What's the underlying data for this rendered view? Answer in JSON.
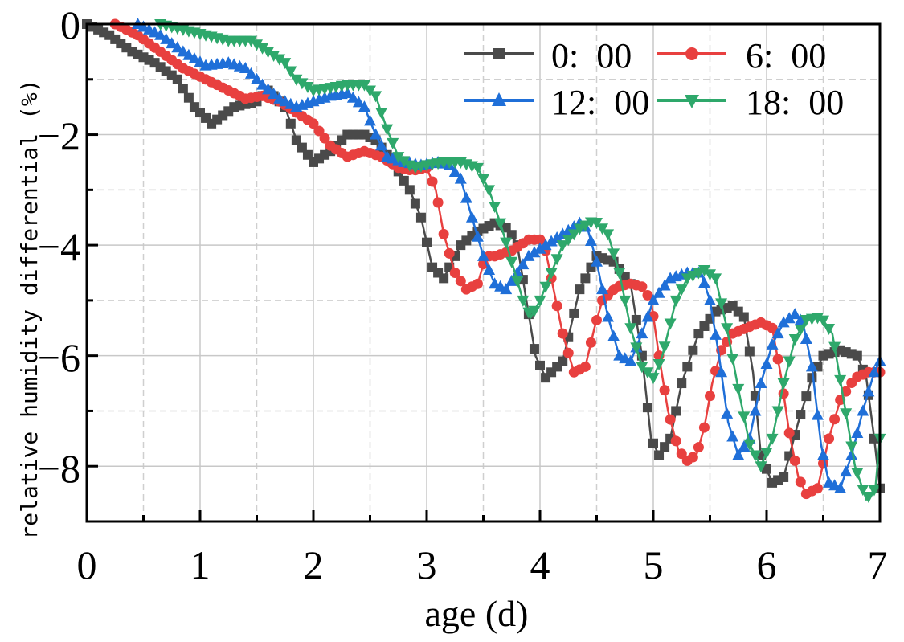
{
  "chart_data": {
    "type": "line",
    "title": "",
    "xlabel": "age (d)",
    "ylabel": "relative humidity differential (%)",
    "xlim": [
      0,
      7
    ],
    "ylim": [
      -9,
      0
    ],
    "x_ticks": [
      0,
      1,
      2,
      3,
      4,
      5,
      6,
      7
    ],
    "y_ticks": [
      0,
      -2,
      -4,
      -6,
      -8
    ],
    "x_tick_labels": [
      "0",
      "1",
      "2",
      "3",
      "4",
      "5",
      "6",
      "7"
    ],
    "y_tick_labels": [
      "0",
      "−2",
      "−4",
      "−6",
      "−8"
    ],
    "grid": true,
    "legend_position": "top-right",
    "series": [
      {
        "name": "0: 00",
        "label": "0:  00",
        "color": "#4a4a4a",
        "marker": "square",
        "points": [
          [
            0,
            0
          ],
          [
            0.2,
            -0.2
          ],
          [
            0.4,
            -0.5
          ],
          [
            0.6,
            -0.7
          ],
          [
            0.8,
            -1.0
          ],
          [
            0.95,
            -1.5
          ],
          [
            1.1,
            -1.8
          ],
          [
            1.3,
            -1.5
          ],
          [
            1.5,
            -1.4
          ],
          [
            1.6,
            -1.2
          ],
          [
            1.75,
            -1.5
          ],
          [
            1.85,
            -2.1
          ],
          [
            2.0,
            -2.5
          ],
          [
            2.15,
            -2.3
          ],
          [
            2.3,
            -2.0
          ],
          [
            2.45,
            -2.0
          ],
          [
            2.55,
            -2.1
          ],
          [
            2.7,
            -2.5
          ],
          [
            2.85,
            -3.0
          ],
          [
            2.95,
            -3.5
          ],
          [
            3.05,
            -4.4
          ],
          [
            3.15,
            -4.6
          ],
          [
            3.3,
            -4.0
          ],
          [
            3.45,
            -3.75
          ],
          [
            3.6,
            -3.6
          ],
          [
            3.72,
            -3.7
          ],
          [
            3.8,
            -4.0
          ],
          [
            3.88,
            -5.0
          ],
          [
            3.96,
            -6.0
          ],
          [
            4.05,
            -6.4
          ],
          [
            4.2,
            -6.1
          ],
          [
            4.35,
            -4.8
          ],
          [
            4.5,
            -4.2
          ],
          [
            4.65,
            -4.3
          ],
          [
            4.8,
            -4.7
          ],
          [
            4.9,
            -6.0
          ],
          [
            4.98,
            -7.5
          ],
          [
            5.05,
            -7.8
          ],
          [
            5.15,
            -7.5
          ],
          [
            5.25,
            -6.5
          ],
          [
            5.4,
            -5.6
          ],
          [
            5.55,
            -5.2
          ],
          [
            5.7,
            -5.1
          ],
          [
            5.8,
            -5.3
          ],
          [
            5.88,
            -6.3
          ],
          [
            5.95,
            -7.8
          ],
          [
            6.05,
            -8.3
          ],
          [
            6.15,
            -8.2
          ],
          [
            6.28,
            -7.2
          ],
          [
            6.4,
            -6.4
          ],
          [
            6.5,
            -6.0
          ],
          [
            6.65,
            -5.9
          ],
          [
            6.8,
            -6.0
          ],
          [
            6.88,
            -6.4
          ],
          [
            6.95,
            -7.5
          ],
          [
            7.0,
            -8.4
          ]
        ]
      },
      {
        "name": "6: 00",
        "label": "6:  00",
        "color": "#e8403f",
        "marker": "circle",
        "points": [
          [
            0.25,
            0
          ],
          [
            0.45,
            -0.2
          ],
          [
            0.65,
            -0.5
          ],
          [
            0.85,
            -0.8
          ],
          [
            1.05,
            -1.0
          ],
          [
            1.25,
            -1.2
          ],
          [
            1.4,
            -1.35
          ],
          [
            1.55,
            -1.3
          ],
          [
            1.7,
            -1.4
          ],
          [
            1.85,
            -1.6
          ],
          [
            2.0,
            -1.8
          ],
          [
            2.15,
            -2.2
          ],
          [
            2.3,
            -2.4
          ],
          [
            2.45,
            -2.3
          ],
          [
            2.6,
            -2.4
          ],
          [
            2.75,
            -2.6
          ],
          [
            2.88,
            -2.65
          ],
          [
            3.0,
            -2.6
          ],
          [
            3.08,
            -3.0
          ],
          [
            3.15,
            -3.8
          ],
          [
            3.25,
            -4.5
          ],
          [
            3.35,
            -4.8
          ],
          [
            3.45,
            -4.7
          ],
          [
            3.52,
            -4.2
          ],
          [
            3.6,
            -4.2
          ],
          [
            3.75,
            -4.1
          ],
          [
            3.9,
            -3.9
          ],
          [
            4.0,
            -3.9
          ],
          [
            4.05,
            -4.1
          ],
          [
            4.12,
            -4.8
          ],
          [
            4.2,
            -5.6
          ],
          [
            4.3,
            -6.3
          ],
          [
            4.4,
            -6.2
          ],
          [
            4.48,
            -5.5
          ],
          [
            4.55,
            -5.0
          ],
          [
            4.68,
            -4.75
          ],
          [
            4.8,
            -4.7
          ],
          [
            4.9,
            -4.75
          ],
          [
            4.98,
            -5.0
          ],
          [
            5.05,
            -6.0
          ],
          [
            5.13,
            -7.0
          ],
          [
            5.22,
            -7.7
          ],
          [
            5.3,
            -7.9
          ],
          [
            5.38,
            -7.8
          ],
          [
            5.45,
            -7.3
          ],
          [
            5.52,
            -6.5
          ],
          [
            5.6,
            -5.9
          ],
          [
            5.7,
            -5.6
          ],
          [
            5.82,
            -5.5
          ],
          [
            5.95,
            -5.4
          ],
          [
            6.05,
            -5.5
          ],
          [
            6.13,
            -6.4
          ],
          [
            6.2,
            -7.4
          ],
          [
            6.28,
            -8.2
          ],
          [
            6.35,
            -8.5
          ],
          [
            6.45,
            -8.4
          ],
          [
            6.55,
            -7.5
          ],
          [
            6.65,
            -6.8
          ],
          [
            6.78,
            -6.4
          ],
          [
            6.9,
            -6.3
          ],
          [
            7.0,
            -6.3
          ]
        ]
      },
      {
        "name": "12: 00",
        "label": "12:  00",
        "color": "#1f6fd8",
        "marker": "triangle-up",
        "points": [
          [
            0.45,
            0
          ],
          [
            0.65,
            -0.2
          ],
          [
            0.85,
            -0.5
          ],
          [
            1.05,
            -0.75
          ],
          [
            1.25,
            -0.7
          ],
          [
            1.4,
            -0.8
          ],
          [
            1.55,
            -1.1
          ],
          [
            1.7,
            -1.35
          ],
          [
            1.85,
            -1.5
          ],
          [
            2.0,
            -1.4
          ],
          [
            2.15,
            -1.3
          ],
          [
            2.3,
            -1.25
          ],
          [
            2.45,
            -1.5
          ],
          [
            2.55,
            -2.0
          ],
          [
            2.65,
            -2.4
          ],
          [
            2.8,
            -2.5
          ],
          [
            2.95,
            -2.55
          ],
          [
            3.1,
            -2.5
          ],
          [
            3.2,
            -2.55
          ],
          [
            3.3,
            -2.8
          ],
          [
            3.4,
            -3.5
          ],
          [
            3.5,
            -4.2
          ],
          [
            3.6,
            -4.7
          ],
          [
            3.7,
            -4.8
          ],
          [
            3.8,
            -4.5
          ],
          [
            3.9,
            -4.2
          ],
          [
            4.05,
            -4.0
          ],
          [
            4.2,
            -3.8
          ],
          [
            4.35,
            -3.6
          ],
          [
            4.42,
            -3.7
          ],
          [
            4.5,
            -4.3
          ],
          [
            4.6,
            -5.3
          ],
          [
            4.7,
            -6.0
          ],
          [
            4.8,
            -6.1
          ],
          [
            4.9,
            -5.6
          ],
          [
            5.0,
            -5.0
          ],
          [
            5.15,
            -4.6
          ],
          [
            5.3,
            -4.5
          ],
          [
            5.42,
            -4.5
          ],
          [
            5.5,
            -5.0
          ],
          [
            5.58,
            -6.0
          ],
          [
            5.66,
            -7.2
          ],
          [
            5.75,
            -7.8
          ],
          [
            5.85,
            -7.5
          ],
          [
            5.95,
            -6.5
          ],
          [
            6.05,
            -5.8
          ],
          [
            6.15,
            -5.4
          ],
          [
            6.25,
            -5.25
          ],
          [
            6.32,
            -5.4
          ],
          [
            6.4,
            -6.2
          ],
          [
            6.48,
            -7.6
          ],
          [
            6.55,
            -8.3
          ],
          [
            6.65,
            -8.4
          ],
          [
            6.75,
            -7.8
          ],
          [
            6.85,
            -7.0
          ],
          [
            6.95,
            -6.3
          ],
          [
            7.0,
            -6.1
          ]
        ]
      },
      {
        "name": "18: 00",
        "label": "18:  00",
        "color": "#2ea86b",
        "marker": "triangle-down",
        "points": [
          [
            0.65,
            0
          ],
          [
            0.85,
            -0.1
          ],
          [
            1.05,
            -0.2
          ],
          [
            1.25,
            -0.3
          ],
          [
            1.45,
            -0.3
          ],
          [
            1.6,
            -0.5
          ],
          [
            1.75,
            -0.7
          ],
          [
            1.85,
            -1.0
          ],
          [
            2.0,
            -1.2
          ],
          [
            2.15,
            -1.15
          ],
          [
            2.3,
            -1.1
          ],
          [
            2.45,
            -1.1
          ],
          [
            2.55,
            -1.3
          ],
          [
            2.65,
            -1.9
          ],
          [
            2.75,
            -2.4
          ],
          [
            2.88,
            -2.6
          ],
          [
            3.0,
            -2.55
          ],
          [
            3.15,
            -2.5
          ],
          [
            3.3,
            -2.5
          ],
          [
            3.45,
            -2.6
          ],
          [
            3.55,
            -3.0
          ],
          [
            3.65,
            -3.6
          ],
          [
            3.75,
            -4.3
          ],
          [
            3.85,
            -5.0
          ],
          [
            3.92,
            -5.3
          ],
          [
            4.0,
            -5.0
          ],
          [
            4.1,
            -4.5
          ],
          [
            4.2,
            -4.0
          ],
          [
            4.35,
            -3.7
          ],
          [
            4.48,
            -3.55
          ],
          [
            4.6,
            -3.8
          ],
          [
            4.7,
            -4.5
          ],
          [
            4.8,
            -5.5
          ],
          [
            4.9,
            -6.2
          ],
          [
            5.0,
            -6.4
          ],
          [
            5.08,
            -6.0
          ],
          [
            5.2,
            -5.0
          ],
          [
            5.3,
            -4.6
          ],
          [
            5.45,
            -4.45
          ],
          [
            5.55,
            -4.6
          ],
          [
            5.65,
            -5.5
          ],
          [
            5.75,
            -6.6
          ],
          [
            5.85,
            -7.6
          ],
          [
            5.95,
            -8.0
          ],
          [
            6.05,
            -7.5
          ],
          [
            6.15,
            -6.5
          ],
          [
            6.25,
            -5.7
          ],
          [
            6.35,
            -5.35
          ],
          [
            6.48,
            -5.3
          ],
          [
            6.58,
            -5.6
          ],
          [
            6.68,
            -6.8
          ],
          [
            6.78,
            -8.0
          ],
          [
            6.88,
            -8.6
          ],
          [
            6.96,
            -8.4
          ],
          [
            7.0,
            -7.5
          ]
        ]
      }
    ]
  }
}
